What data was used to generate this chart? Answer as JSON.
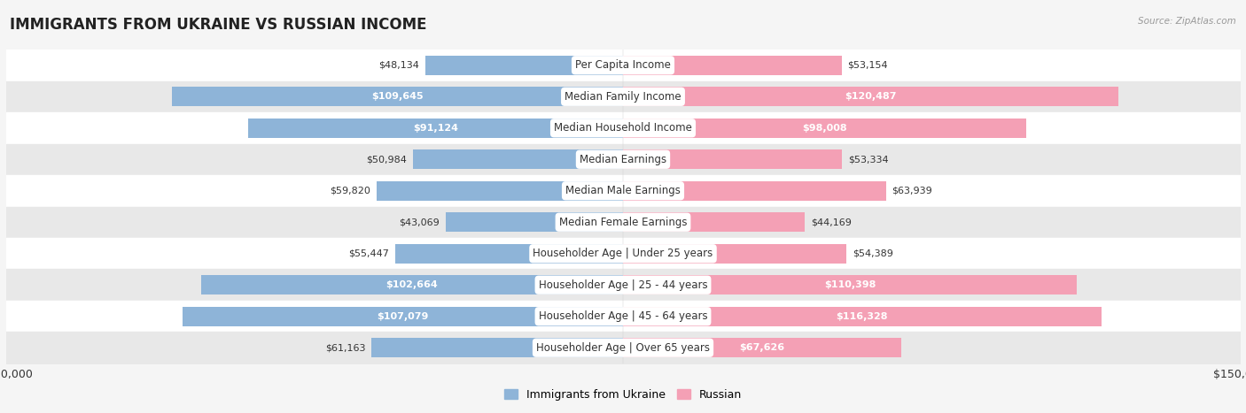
{
  "title": "IMMIGRANTS FROM UKRAINE VS RUSSIAN INCOME",
  "source": "Source: ZipAtlas.com",
  "categories": [
    "Per Capita Income",
    "Median Family Income",
    "Median Household Income",
    "Median Earnings",
    "Median Male Earnings",
    "Median Female Earnings",
    "Householder Age | Under 25 years",
    "Householder Age | 25 - 44 years",
    "Householder Age | 45 - 64 years",
    "Householder Age | Over 65 years"
  ],
  "ukraine_values": [
    48134,
    109645,
    91124,
    50984,
    59820,
    43069,
    55447,
    102664,
    107079,
    61163
  ],
  "russian_values": [
    53154,
    120487,
    98008,
    53334,
    63939,
    44169,
    54389,
    110398,
    116328,
    67626
  ],
  "ukraine_labels": [
    "$48,134",
    "$109,645",
    "$91,124",
    "$50,984",
    "$59,820",
    "$43,069",
    "$55,447",
    "$102,664",
    "$107,079",
    "$61,163"
  ],
  "russian_labels": [
    "$53,154",
    "$120,487",
    "$98,008",
    "$53,334",
    "$63,939",
    "$44,169",
    "$54,389",
    "$110,398",
    "$116,328",
    "$67,626"
  ],
  "ukraine_color": "#8eb4d8",
  "russian_color": "#f4a0b5",
  "max_value": 150000,
  "bar_height": 0.62,
  "bg_color": "#f5f5f5",
  "row_colors": [
    "#ffffff",
    "#e8e8e8"
  ],
  "title_fontsize": 12,
  "label_fontsize": 8.0,
  "category_fontsize": 8.5,
  "legend_ukraine": "Immigrants from Ukraine",
  "legend_russian": "Russian",
  "high_threshold": 65000
}
